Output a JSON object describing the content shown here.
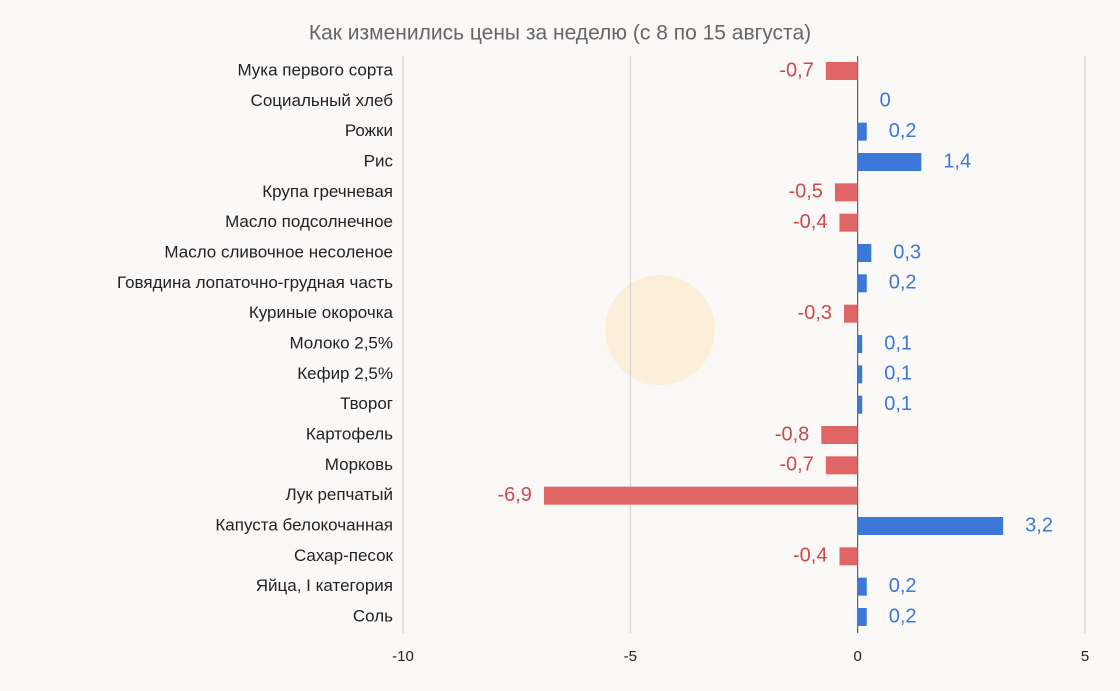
{
  "chart_data": {
    "type": "hbar",
    "title": "Как изменились цены за неделю (с 8 по 15 августа)",
    "categories": [
      "Мука первого сорта",
      "Социальный хлеб",
      "Рожки",
      "Рис",
      "Крупа гречневая",
      "Масло подсолнечное",
      "Масло сливочное несоленое",
      "Говядина лопаточно-грудная часть",
      "Куриные окорочка",
      "Молоко 2,5%",
      "Кефир 2,5%",
      "Творог",
      "Картофель",
      "Морковь",
      "Лук репчатый",
      "Капуста белокочанная",
      "Сахар-песок",
      "Яйца, I категория",
      "Соль"
    ],
    "values": [
      -0.7,
      0,
      0.2,
      1.4,
      -0.5,
      -0.4,
      0.3,
      0.2,
      -0.3,
      0.1,
      0.1,
      0.1,
      -0.8,
      -0.7,
      -6.9,
      3.2,
      -0.4,
      0.2,
      0.2
    ],
    "value_labels": [
      "-0,7",
      "0",
      "0,2",
      "1,4",
      "-0,5",
      "-0,4",
      "0,3",
      "0,2",
      "-0,3",
      "0,1",
      "0,1",
      "0,1",
      "-0,8",
      "-0,7",
      "-6,9",
      "3,2",
      "-0,4",
      "0,2",
      "0,2"
    ],
    "positive_color": "#3c78d8",
    "negative_color": "#e06666",
    "xlim": [
      -10,
      5
    ],
    "xticks": [
      -10,
      -5,
      0,
      5
    ],
    "grid": true
  }
}
